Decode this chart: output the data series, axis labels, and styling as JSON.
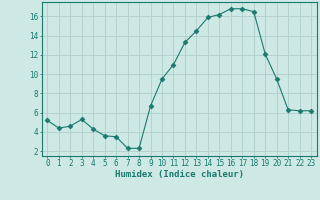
{
  "x": [
    0,
    1,
    2,
    3,
    4,
    5,
    6,
    7,
    8,
    9,
    10,
    11,
    12,
    13,
    14,
    15,
    16,
    17,
    18,
    19,
    20,
    21,
    22,
    23
  ],
  "y": [
    5.2,
    4.4,
    4.6,
    5.3,
    4.3,
    3.6,
    3.5,
    2.3,
    2.3,
    6.7,
    9.5,
    11.0,
    13.3,
    14.5,
    15.9,
    16.2,
    16.8,
    16.8,
    16.5,
    12.1,
    9.5,
    6.3,
    6.2,
    6.2
  ],
  "xlabel": "Humidex (Indice chaleur)",
  "xlim": [
    -0.5,
    23.5
  ],
  "ylim": [
    1.5,
    17.5
  ],
  "yticks": [
    2,
    4,
    6,
    8,
    10,
    12,
    14,
    16
  ],
  "xticks": [
    0,
    1,
    2,
    3,
    4,
    5,
    6,
    7,
    8,
    9,
    10,
    11,
    12,
    13,
    14,
    15,
    16,
    17,
    18,
    19,
    20,
    21,
    22,
    23
  ],
  "line_color": "#1a7a6e",
  "marker": "D",
  "marker_size": 2.5,
  "bg_color": "#cde8e5",
  "grid_color": "#b0d0cc",
  "axes_color": "#1a7a6e",
  "label_fontsize": 6.5,
  "tick_fontsize": 5.5
}
